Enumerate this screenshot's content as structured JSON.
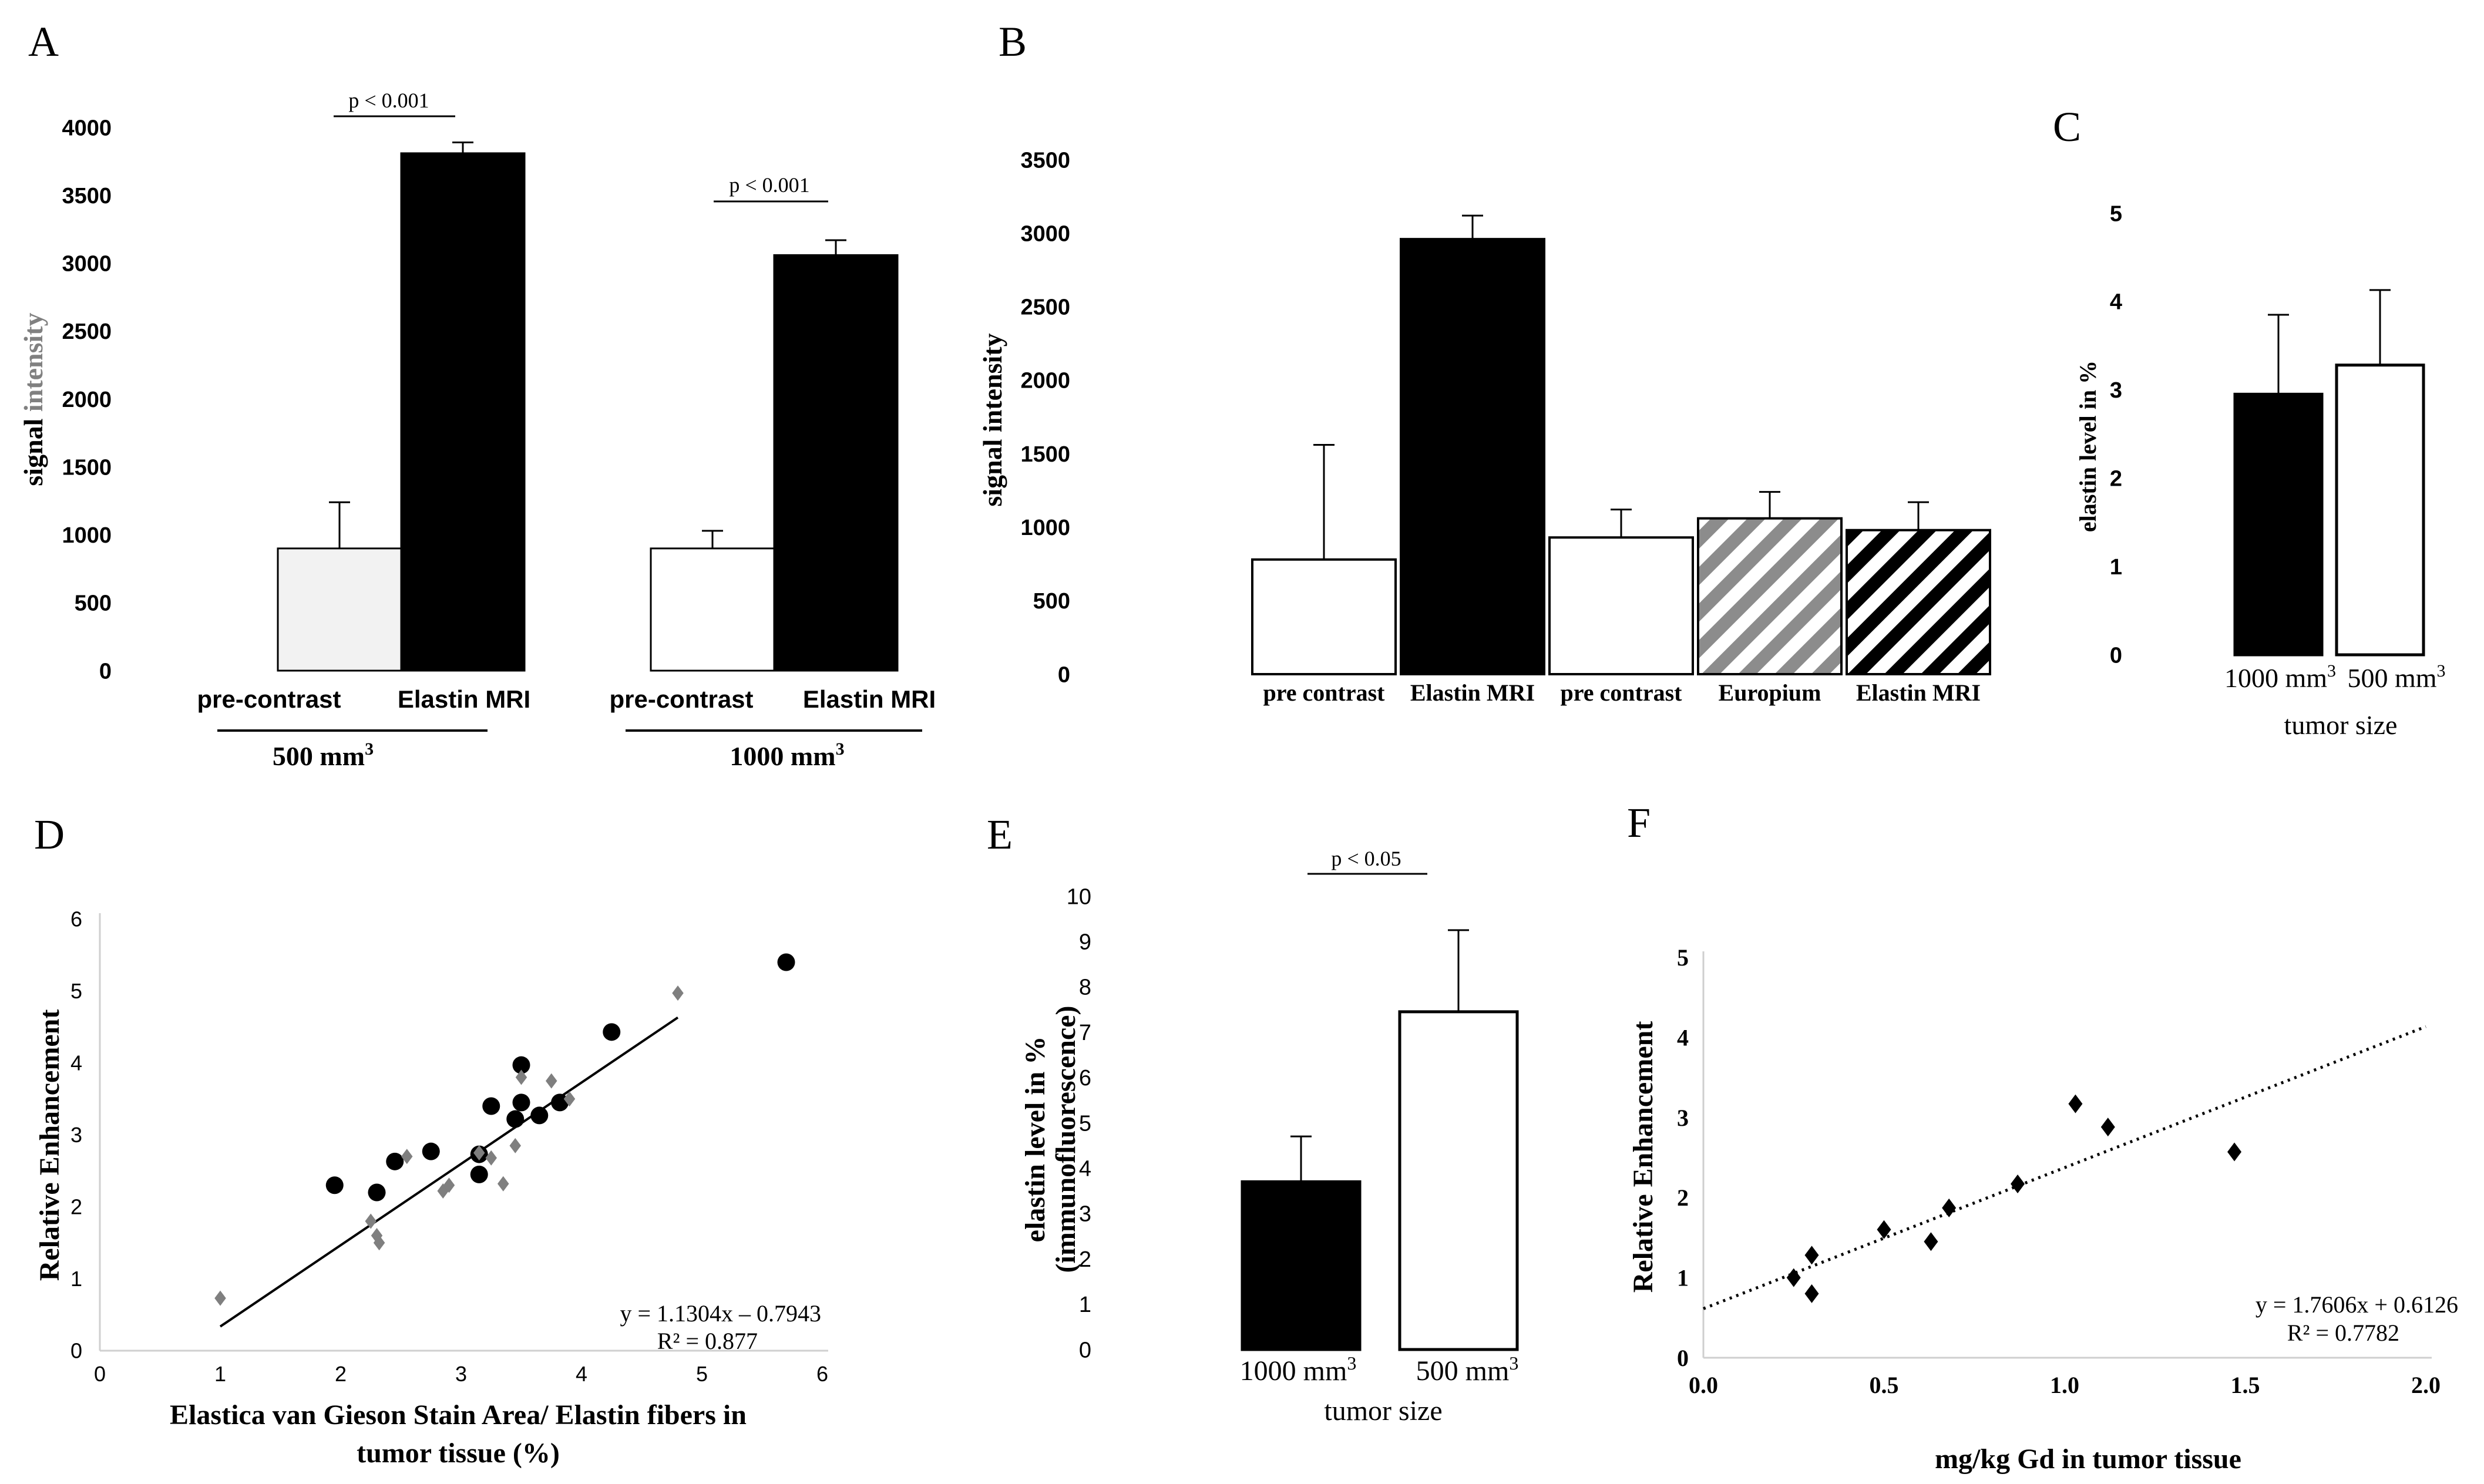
{
  "figure": {
    "panel_letters": [
      "A",
      "B",
      "C",
      "D",
      "E",
      "F"
    ]
  },
  "chart_data": [
    {
      "id": "A",
      "type": "bar",
      "ylabel_prefix": "signal",
      "ylabel_suffix": "intensity",
      "ylim": [
        0,
        4000
      ],
      "yticks": [
        0,
        500,
        1000,
        1500,
        2000,
        2500,
        3000,
        3500,
        4000
      ],
      "groups": [
        {
          "name": "500 mm",
          "superscript": "3",
          "bars": [
            {
              "label": "pre-contrast",
              "value": 900,
              "error": 340,
              "fill": "#f2f2f2"
            },
            {
              "label": "Elastin MRI",
              "value": 3810,
              "error": 80,
              "fill": "#000000"
            }
          ],
          "annotation": "p < 0.001"
        },
        {
          "name": "1000 mm",
          "superscript": "3",
          "bars": [
            {
              "label": "pre-contrast",
              "value": 900,
              "error": 130,
              "fill": "#ffffff"
            },
            {
              "label": "Elastin MRI",
              "value": 3060,
              "error": 110,
              "fill": "#000000"
            }
          ],
          "annotation": "p < 0.001"
        }
      ]
    },
    {
      "id": "B",
      "type": "bar",
      "ylabel": "signal intensity",
      "ylim": [
        0,
        3500
      ],
      "yticks": [
        0,
        500,
        1000,
        1500,
        2000,
        2500,
        3000,
        3500
      ],
      "categories": [
        "pre contrast",
        "Elastin MRI",
        "pre contrast",
        "Europium",
        "Elastin MRI"
      ],
      "values": [
        780,
        2960,
        930,
        1060,
        980
      ],
      "errors": [
        780,
        160,
        190,
        180,
        190
      ],
      "fills": [
        "#ffffff",
        "#000000",
        "#ffffff",
        "hatch-grey",
        "hatch-black"
      ]
    },
    {
      "id": "C",
      "type": "bar",
      "ylabel": "elastin level in %",
      "xlabel": "tumor size",
      "ylim": [
        0,
        5
      ],
      "yticks": [
        0,
        1,
        2,
        3,
        4,
        5
      ],
      "categories": [
        "1000 mm",
        "500 mm"
      ],
      "superscript": "3",
      "values": [
        2.95,
        3.28
      ],
      "errors": [
        0.9,
        0.85
      ],
      "fills": [
        "#000000",
        "#ffffff"
      ]
    },
    {
      "id": "D",
      "type": "scatter",
      "ylabel": "Relative Enhancement",
      "xlabel_line1": "Elastica van Gieson Stain Area/ Elastin fibers in",
      "xlabel_line2": "tumor tissue  (%)",
      "xlim": [
        0,
        6
      ],
      "ylim": [
        0,
        6
      ],
      "xticks": [
        0,
        1,
        2,
        3,
        4,
        5,
        6
      ],
      "yticks": [
        0,
        1,
        2,
        3,
        4,
        5,
        6
      ],
      "equation": "y = 1.1304x – 0.7943",
      "r2": "R² = 0.877",
      "trendline": {
        "slope": 1.1304,
        "intercept": -0.7943,
        "x_from": 1.0,
        "x_to": 4.8
      },
      "series": [
        {
          "name": "circles",
          "marker": "circle",
          "points": [
            [
              1.95,
              2.3
            ],
            [
              2.3,
              2.2
            ],
            [
              2.45,
              2.63
            ],
            [
              2.75,
              2.77
            ],
            [
              3.15,
              2.45
            ],
            [
              3.15,
              2.73
            ],
            [
              3.25,
              3.4
            ],
            [
              3.45,
              3.22
            ],
            [
              3.5,
              3.45
            ],
            [
              3.5,
              3.97
            ],
            [
              3.65,
              3.27
            ],
            [
              3.82,
              3.45
            ],
            [
              4.25,
              4.43
            ],
            [
              5.7,
              5.4
            ]
          ]
        },
        {
          "name": "diamonds",
          "marker": "diamond",
          "points": [
            [
              1.0,
              0.73
            ],
            [
              2.25,
              1.8
            ],
            [
              2.3,
              1.6
            ],
            [
              2.32,
              1.5
            ],
            [
              2.55,
              2.7
            ],
            [
              2.85,
              2.22
            ],
            [
              2.9,
              2.3
            ],
            [
              3.15,
              2.75
            ],
            [
              3.25,
              2.68
            ],
            [
              3.35,
              2.32
            ],
            [
              3.45,
              2.85
            ],
            [
              3.5,
              3.8
            ],
            [
              3.75,
              3.75
            ],
            [
              3.9,
              3.5
            ],
            [
              4.8,
              4.97
            ]
          ]
        }
      ]
    },
    {
      "id": "E",
      "type": "bar",
      "ylabel_line1": "elastin level in %",
      "ylabel_line2": "(immunofluorescence)",
      "xlabel": "tumor size",
      "ylim": [
        0,
        10
      ],
      "yticks": [
        0,
        1,
        2,
        3,
        4,
        5,
        6,
        7,
        8,
        9,
        10
      ],
      "categories": [
        "1000 mm",
        "500 mm"
      ],
      "superscript": "3",
      "values": [
        3.7,
        7.45
      ],
      "errors": [
        1.0,
        1.8
      ],
      "fills": [
        "#000000",
        "#ffffff"
      ],
      "annotation": "p < 0.05"
    },
    {
      "id": "F",
      "type": "scatter",
      "ylabel": "Relative Enhancement",
      "xlabel": "mg/kg Gd in tumor tissue",
      "xlim": [
        0,
        2
      ],
      "ylim": [
        0,
        5
      ],
      "xticks": [
        "0.0",
        "0.5",
        "1.0",
        "1.5",
        "2.0"
      ],
      "yticks": [
        0,
        1,
        2,
        3,
        4,
        5
      ],
      "equation": "y = 1.7606x + 0.6126",
      "r2": "R² = 0.7782",
      "trendline": {
        "slope": 1.7606,
        "intercept": 0.6126,
        "x_from": 0,
        "x_to": 2.0
      },
      "series": [
        {
          "name": "samples",
          "marker": "diamond",
          "points": [
            [
              0.25,
              1.0
            ],
            [
              0.3,
              1.28
            ],
            [
              0.3,
              0.8
            ],
            [
              0.5,
              1.6
            ],
            [
              0.63,
              1.45
            ],
            [
              0.68,
              1.87
            ],
            [
              0.87,
              2.17
            ],
            [
              1.03,
              3.17
            ],
            [
              1.12,
              2.88
            ],
            [
              1.47,
              2.57
            ]
          ]
        }
      ]
    }
  ]
}
